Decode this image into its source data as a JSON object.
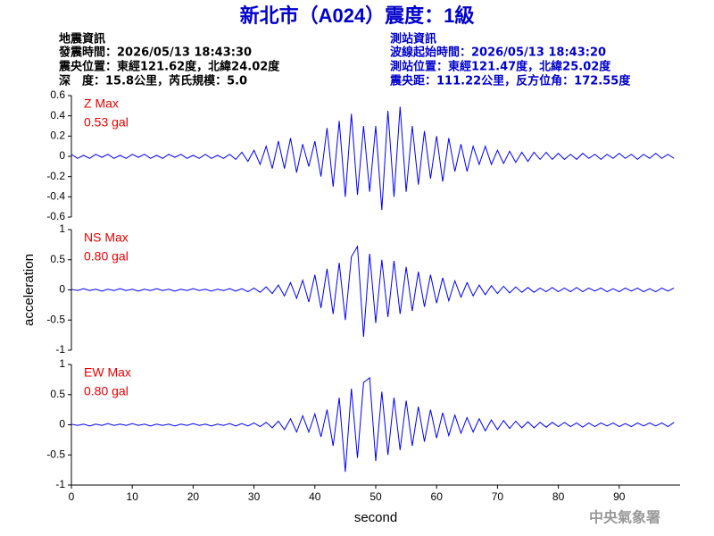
{
  "header": {
    "title": "新北市（A024）震度：1級",
    "left": [
      "地震資訊",
      "發震時間：2026/05/13 18:43:30",
      "震央位置：東經121.62度，北緯24.02度",
      "深　度：15.8公里，芮氏規模：5.0"
    ],
    "right": [
      "測站資訊",
      "波線起始時間：2026/05/13 18:43:20",
      "測站位置：東經121.47度，北緯25.02度",
      "震央距：111.22公里，反方位角：172.55度"
    ],
    "watermark": "中央氣象署"
  },
  "chart_data": [
    {
      "type": "line",
      "label": "Z Max",
      "max": "0.53 gal",
      "color": "#0000ff",
      "xlim": [
        0,
        100
      ],
      "ylim": [
        -0.6,
        0.6
      ],
      "yticks": [
        0.6,
        0.4,
        0.2,
        0,
        -0.2,
        -0.4,
        -0.6
      ],
      "x": [
        0,
        1,
        2,
        3,
        4,
        5,
        6,
        7,
        8,
        9,
        10,
        11,
        12,
        13,
        14,
        15,
        16,
        17,
        18,
        19,
        20,
        21,
        22,
        23,
        24,
        25,
        26,
        27,
        28,
        29,
        30,
        31,
        32,
        33,
        34,
        35,
        36,
        37,
        38,
        39,
        40,
        41,
        42,
        43,
        44,
        45,
        46,
        47,
        48,
        49,
        50,
        51,
        52,
        53,
        54,
        55,
        56,
        57,
        58,
        59,
        60,
        61,
        62,
        63,
        64,
        65,
        66,
        67,
        68,
        69,
        70,
        71,
        72,
        73,
        74,
        75,
        76,
        77,
        78,
        79,
        80,
        81,
        82,
        83,
        84,
        85,
        86,
        87,
        88,
        89,
        90,
        91,
        92,
        93,
        94,
        95,
        96,
        97,
        98,
        99
      ],
      "values": [
        0.02,
        -0.02,
        0.01,
        -0.02,
        0.02,
        -0.01,
        0.02,
        -0.02,
        0.01,
        -0.02,
        0.02,
        -0.01,
        0.02,
        -0.02,
        0.01,
        -0.02,
        0.02,
        -0.01,
        0.02,
        -0.02,
        0.01,
        -0.02,
        0.02,
        -0.02,
        0.01,
        -0.02,
        0.02,
        -0.03,
        0.04,
        -0.05,
        0.06,
        -0.08,
        0.1,
        -0.12,
        0.15,
        -0.12,
        0.18,
        -0.16,
        0.12,
        -0.1,
        0.15,
        -0.2,
        0.28,
        -0.3,
        0.35,
        -0.4,
        0.42,
        -0.38,
        0.3,
        -0.35,
        0.3,
        -0.53,
        0.45,
        -0.4,
        0.49,
        -0.35,
        0.3,
        -0.28,
        0.25,
        -0.22,
        0.2,
        -0.25,
        0.18,
        -0.15,
        0.12,
        -0.15,
        0.1,
        -0.08,
        0.1,
        -0.08,
        0.06,
        -0.07,
        0.05,
        -0.06,
        0.04,
        -0.05,
        0.04,
        -0.03,
        0.04,
        -0.03,
        0.03,
        -0.03,
        0.02,
        -0.03,
        0.03,
        -0.02,
        0.02,
        -0.03,
        0.02,
        -0.02,
        0.03,
        -0.02,
        0.02,
        -0.03,
        0.02,
        -0.02,
        0.03,
        -0.02,
        0.02,
        -0.02
      ]
    },
    {
      "type": "line",
      "label": "NS Max",
      "max": "0.80 gal",
      "color": "#0000ff",
      "ylabel": "acceleration",
      "xlim": [
        0,
        100
      ],
      "ylim": [
        -1,
        1
      ],
      "yticks": [
        1,
        0.5,
        0,
        -0.5,
        -1
      ],
      "x": [
        0,
        1,
        2,
        3,
        4,
        5,
        6,
        7,
        8,
        9,
        10,
        11,
        12,
        13,
        14,
        15,
        16,
        17,
        18,
        19,
        20,
        21,
        22,
        23,
        24,
        25,
        26,
        27,
        28,
        29,
        30,
        31,
        32,
        33,
        34,
        35,
        36,
        37,
        38,
        39,
        40,
        41,
        42,
        43,
        44,
        45,
        46,
        47,
        48,
        49,
        50,
        51,
        52,
        53,
        54,
        55,
        56,
        57,
        58,
        59,
        60,
        61,
        62,
        63,
        64,
        65,
        66,
        67,
        68,
        69,
        70,
        71,
        72,
        73,
        74,
        75,
        76,
        77,
        78,
        79,
        80,
        81,
        82,
        83,
        84,
        85,
        86,
        87,
        88,
        89,
        90,
        91,
        92,
        93,
        94,
        95,
        96,
        97,
        98,
        99
      ],
      "values": [
        0.01,
        -0.01,
        0.02,
        -0.01,
        0.01,
        -0.02,
        0.01,
        -0.01,
        0.02,
        -0.01,
        0.01,
        -0.02,
        0.01,
        -0.01,
        0.02,
        -0.01,
        0.01,
        -0.02,
        0.01,
        -0.01,
        0.02,
        -0.01,
        0.01,
        -0.02,
        0.01,
        -0.01,
        0.02,
        -0.02,
        0.02,
        -0.03,
        0.03,
        -0.04,
        0.05,
        -0.06,
        0.08,
        -0.1,
        0.12,
        -0.14,
        0.16,
        -0.2,
        0.25,
        -0.3,
        0.35,
        -0.4,
        0.45,
        -0.5,
        0.55,
        0.72,
        -0.78,
        0.6,
        -0.55,
        0.5,
        -0.45,
        0.48,
        -0.4,
        0.38,
        -0.35,
        0.3,
        -0.28,
        0.25,
        -0.22,
        0.2,
        -0.18,
        0.15,
        -0.12,
        0.12,
        -0.1,
        0.08,
        -0.08,
        0.07,
        -0.06,
        0.06,
        -0.05,
        0.05,
        -0.04,
        0.04,
        -0.04,
        0.03,
        -0.03,
        0.04,
        -0.03,
        0.03,
        -0.03,
        0.04,
        -0.03,
        0.03,
        -0.02,
        0.03,
        -0.03,
        0.02,
        -0.03,
        0.03,
        -0.02,
        0.03,
        -0.03,
        0.02,
        -0.03,
        0.03,
        -0.02,
        0.03
      ]
    },
    {
      "type": "line",
      "label": "EW Max",
      "max": "0.80 gal",
      "color": "#0000ff",
      "xlabel": "second",
      "xlim": [
        0,
        100
      ],
      "xticks": [
        0,
        10,
        20,
        30,
        40,
        50,
        60,
        70,
        80,
        90
      ],
      "ylim": [
        -1,
        1
      ],
      "yticks": [
        1,
        0.5,
        0,
        -0.5,
        -1
      ],
      "x": [
        0,
        1,
        2,
        3,
        4,
        5,
        6,
        7,
        8,
        9,
        10,
        11,
        12,
        13,
        14,
        15,
        16,
        17,
        18,
        19,
        20,
        21,
        22,
        23,
        24,
        25,
        26,
        27,
        28,
        29,
        30,
        31,
        32,
        33,
        34,
        35,
        36,
        37,
        38,
        39,
        40,
        41,
        42,
        43,
        44,
        45,
        46,
        47,
        48,
        49,
        50,
        51,
        52,
        53,
        54,
        55,
        56,
        57,
        58,
        59,
        60,
        61,
        62,
        63,
        64,
        65,
        66,
        67,
        68,
        69,
        70,
        71,
        72,
        73,
        74,
        75,
        76,
        77,
        78,
        79,
        80,
        81,
        82,
        83,
        84,
        85,
        86,
        87,
        88,
        89,
        90,
        91,
        92,
        93,
        94,
        95,
        96,
        97,
        98,
        99
      ],
      "values": [
        0.01,
        -0.01,
        0.01,
        -0.02,
        0.01,
        -0.01,
        0.02,
        -0.01,
        0.01,
        -0.01,
        0.02,
        -0.01,
        0.01,
        -0.02,
        0.01,
        -0.01,
        0.01,
        -0.02,
        0.01,
        -0.01,
        0.02,
        -0.01,
        0.01,
        -0.02,
        0.01,
        -0.01,
        0.02,
        -0.02,
        0.02,
        -0.02,
        0.03,
        -0.03,
        0.04,
        -0.05,
        0.06,
        -0.08,
        0.1,
        -0.12,
        0.15,
        -0.12,
        0.18,
        -0.2,
        0.25,
        -0.35,
        0.45,
        -0.78,
        0.6,
        -0.55,
        0.7,
        0.78,
        -0.6,
        0.55,
        -0.5,
        0.45,
        -0.42,
        0.4,
        -0.35,
        0.3,
        -0.28,
        0.25,
        -0.22,
        0.2,
        -0.18,
        0.16,
        -0.14,
        0.12,
        -0.12,
        0.1,
        -0.1,
        0.08,
        -0.08,
        0.07,
        -0.06,
        0.06,
        -0.05,
        0.05,
        -0.05,
        0.04,
        -0.04,
        0.04,
        -0.03,
        0.04,
        -0.03,
        0.03,
        -0.04,
        0.03,
        -0.03,
        0.03,
        -0.02,
        0.03,
        -0.03,
        0.02,
        -0.03,
        0.03,
        -0.02,
        0.03,
        -0.02,
        0.03,
        -0.03,
        0.04
      ]
    }
  ]
}
